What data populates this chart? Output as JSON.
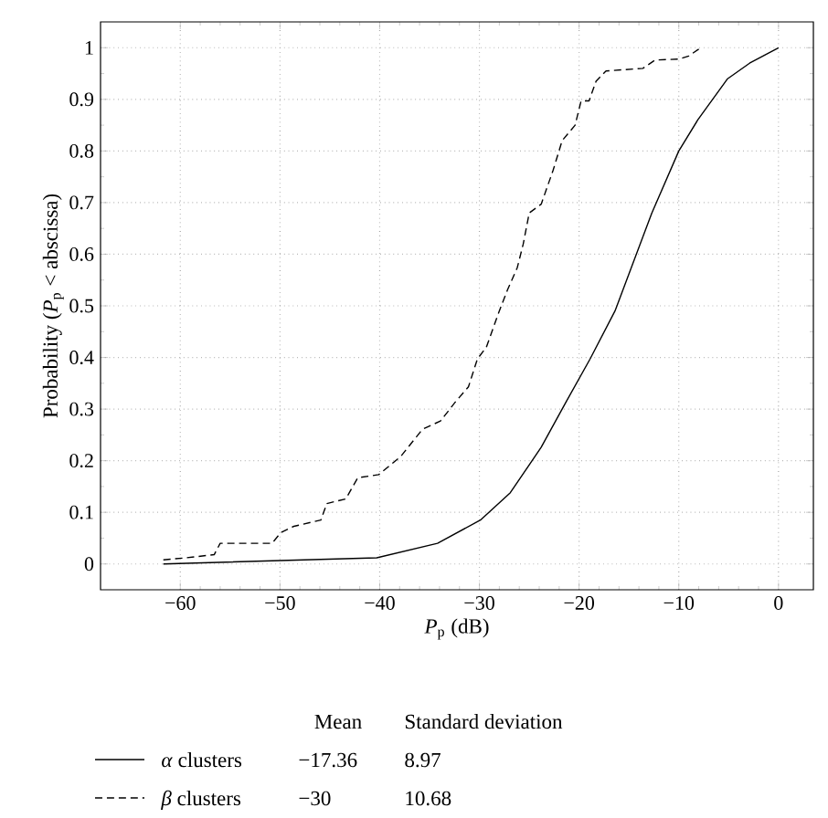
{
  "chart_data": {
    "type": "line",
    "xlabel": "*P*$_{p}$ (dB)",
    "ylabel": "Probability (*P*$_{p}$ < abscissa)",
    "xlim": [
      -68,
      3.5
    ],
    "ylim": [
      -0.05,
      1.05
    ],
    "xticks": [
      {
        "value": -60,
        "label": "−60"
      },
      {
        "value": -50,
        "label": "−50"
      },
      {
        "value": -40,
        "label": "−40"
      },
      {
        "value": -30,
        "label": "−30"
      },
      {
        "value": -20,
        "label": "−20"
      },
      {
        "value": -10,
        "label": "−10"
      },
      0
    ],
    "yticks": [
      0,
      0.1,
      0.2,
      0.3,
      0.4,
      0.5,
      0.6,
      0.7,
      0.8,
      0.9,
      1
    ],
    "grid": true,
    "legend": "bottom",
    "marker": "none",
    "series": [
      {
        "name": "*α* clusters",
        "color": "#000000",
        "line_style": "solid",
        "x": [
          -61.7,
          -40.3,
          -34.2,
          -29.9,
          -26.9,
          -23.8,
          -21.3,
          -18.9,
          -16.4,
          -12.7,
          -10.0,
          -8.1,
          -5.1,
          -2.9,
          0
        ],
        "values": [
          0,
          0.012,
          0.04,
          0.085,
          0.138,
          0.226,
          0.314,
          0.397,
          0.49,
          0.68,
          0.8,
          0.86,
          0.94,
          0.97,
          1.0
        ]
      },
      {
        "name": "*β* clusters",
        "color": "#000000",
        "line_style": "dashed",
        "x": [
          -61.7,
          -59.4,
          -56.6,
          -56.0,
          -50.8,
          -49.9,
          -48.6,
          -45.9,
          -45.3,
          -43.4,
          -42.2,
          -40.1,
          -37.9,
          -35.7,
          -33.9,
          -32.4,
          -31.1,
          -30.2,
          -29.3,
          -28.1,
          -27.2,
          -26.2,
          -25.6,
          -25.0,
          -23.8,
          -22.6,
          -21.7,
          -20.4,
          -19.8,
          -19.0,
          -18.3,
          -17.3,
          -13.6,
          -12.4,
          -10.0,
          -9.0,
          -7.8
        ],
        "values": [
          0.008,
          0.012,
          0.018,
          0.04,
          0.04,
          0.061,
          0.073,
          0.085,
          0.117,
          0.126,
          0.167,
          0.173,
          0.208,
          0.261,
          0.277,
          0.314,
          0.343,
          0.397,
          0.42,
          0.485,
          0.53,
          0.574,
          0.62,
          0.68,
          0.697,
          0.763,
          0.82,
          0.85,
          0.897,
          0.897,
          0.935,
          0.955,
          0.96,
          0.976,
          0.978,
          0.984,
          1.0
        ]
      }
    ],
    "annotations": [
      "Mean",
      "Standard deviation",
      "−17.36",
      "8.97",
      "−30",
      "10.68"
    ]
  }
}
